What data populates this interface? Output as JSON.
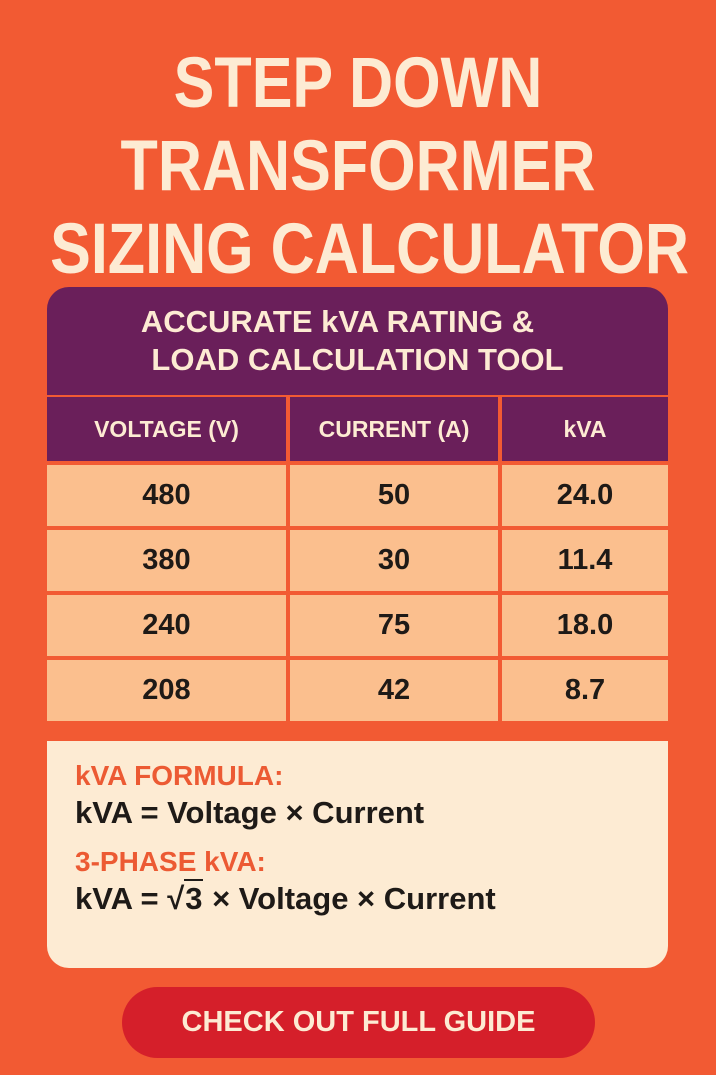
{
  "title": {
    "lines": [
      "STEP DOWN",
      "TRANSFORMER",
      "SIZING CALCULATOR"
    ]
  },
  "card": {
    "header_lines": [
      "ACCURATE kVA RATING &",
      "LOAD CALCULATION TOOL"
    ],
    "columns": [
      "VOLTAGE (V)",
      "CURRENT (A)",
      "kVA"
    ],
    "rows": [
      [
        "480",
        "50",
        "24.0"
      ],
      [
        "380",
        "30",
        "11.4"
      ],
      [
        "240",
        "75",
        "18.0"
      ],
      [
        "208",
        "42",
        "8.7"
      ]
    ]
  },
  "formulas": {
    "single": {
      "label": "kVA FORMULA:",
      "equation": "kVA = Voltage × Current"
    },
    "three_phase": {
      "label": "3-PHASE kVA:",
      "prefix": "kVA = ",
      "root_symbol": "√",
      "root_value": "3",
      "suffix": " × Voltage × Current"
    }
  },
  "cta": {
    "label": "CHECK OUT FULL GUIDE"
  },
  "colors": {
    "background": "#f25a33",
    "header_purple": "#6a1f5a",
    "cell_peach": "#fbbf8e",
    "cream": "#fdebd3",
    "cta_red": "#d51f2a",
    "accent_orange": "#ec5a33"
  }
}
